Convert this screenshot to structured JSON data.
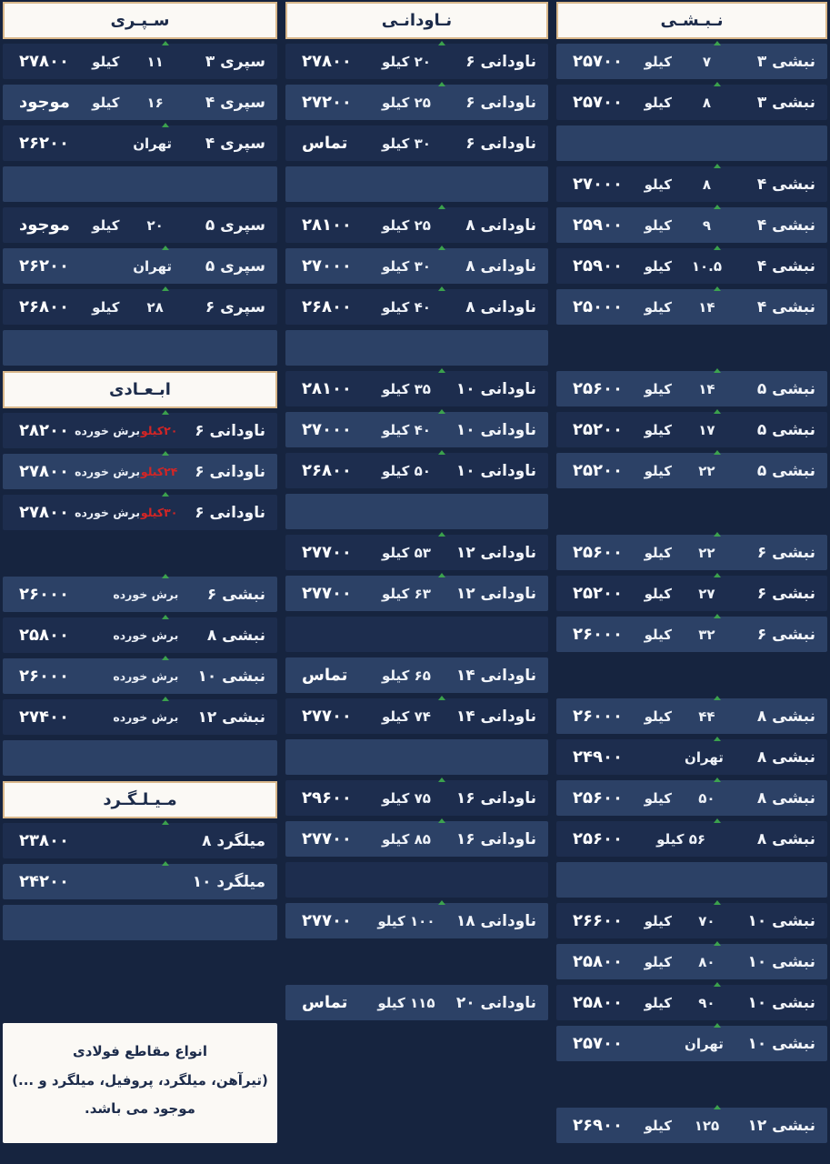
{
  "colors": {
    "background": "#16243f",
    "row_dark": "#1d2d4e",
    "row_light": "#2c4166",
    "header_bg": "#fbf9f5",
    "header_border": "#d9b88b",
    "row_text": "#f2f5fa",
    "price_text": "#ffffff",
    "red_text": "#d42525",
    "header_text": "#1c2b4a",
    "tick_green": "#3fae4e"
  },
  "info_box": {
    "lines": [
      "انواع مقاطع فولادی",
      "(تیرآهن، میلگرد، پروفیل، میلگرد و ...)",
      "موجود می باشد."
    ]
  },
  "columns": [
    {
      "id": "sepri-abadi-milgerd",
      "slots": [
        {
          "type": "header",
          "label": "سـپـری"
        },
        {
          "type": "row",
          "sh": "d",
          "name": "سپری ۳",
          "w": "۱۱",
          "u": "کیلو",
          "p": "۲۷۸۰۰"
        },
        {
          "type": "row",
          "sh": "l",
          "name": "سپری ۴",
          "w": "۱۶",
          "u": "کیلو",
          "p": "موجود"
        },
        {
          "type": "row",
          "sh": "d",
          "name": "سپری ۴",
          "w": "",
          "u": "تهران",
          "p": "۲۶۲۰۰"
        },
        {
          "type": "empty",
          "sh": "l"
        },
        {
          "type": "row",
          "sh": "d",
          "name": "سپری ۵",
          "w": "۲۰",
          "u": "کیلو",
          "p": "موجود"
        },
        {
          "type": "row",
          "sh": "l",
          "name": "سپری ۵",
          "w": "",
          "u": "تهران",
          "p": "۲۶۲۰۰"
        },
        {
          "type": "row",
          "sh": "d",
          "name": "سپری ۶",
          "w": "۲۸",
          "u": "کیلو",
          "p": "۲۶۸۰۰"
        },
        {
          "type": "empty",
          "sh": "l"
        },
        {
          "type": "header",
          "label": "ابـعـادی"
        },
        {
          "type": "row",
          "sh": "d",
          "name": "ناودانی ۶",
          "rw": "۲۰کیلو",
          "note": "برش خورده",
          "p": "۲۸۲۰۰"
        },
        {
          "type": "row",
          "sh": "l",
          "name": "ناودانی ۶",
          "rw": "۲۴کیلو",
          "note": "برش خورده",
          "p": "۲۷۸۰۰"
        },
        {
          "type": "row",
          "sh": "d",
          "name": "ناودانی ۶",
          "rw": "۳۰کیلو",
          "note": "برش خورده",
          "p": "۲۷۸۰۰"
        },
        {
          "type": "empty",
          "sh": "bg"
        },
        {
          "type": "row",
          "sh": "l",
          "name": "نبشی ۶",
          "note": "برش خورده",
          "p": "۲۶۰۰۰"
        },
        {
          "type": "row",
          "sh": "d",
          "name": "نبشی ۸",
          "note": "برش خورده",
          "p": "۲۵۸۰۰"
        },
        {
          "type": "row",
          "sh": "l",
          "name": "نبشی ۱۰",
          "note": "برش خورده",
          "p": "۲۶۰۰۰"
        },
        {
          "type": "row",
          "sh": "d",
          "name": "نبشی ۱۲",
          "note": "برش خورده",
          "p": "۲۷۴۰۰"
        },
        {
          "type": "empty",
          "sh": "l"
        },
        {
          "type": "header",
          "label": "مـیـلـگـرد"
        },
        {
          "type": "row",
          "sh": "d",
          "name": "میلگرد ۸",
          "p": "۲۳۸۰۰"
        },
        {
          "type": "row",
          "sh": "l",
          "name": "میلگرد ۱۰",
          "p": "۲۴۲۰۰"
        },
        {
          "type": "empty",
          "sh": "l"
        },
        {
          "type": "empty",
          "sh": "bg"
        },
        {
          "type": "info"
        }
      ]
    },
    {
      "id": "navodani",
      "slots": [
        {
          "type": "header",
          "label": "نـاودانـی"
        },
        {
          "type": "row",
          "sh": "d",
          "name": "ناودانی ۶",
          "w": "۲۰ کیلو",
          "u": "",
          "p": "۲۷۸۰۰"
        },
        {
          "type": "row",
          "sh": "l",
          "name": "ناودانی ۶",
          "w": "۲۵ کیلو",
          "u": "",
          "p": "۲۷۲۰۰"
        },
        {
          "type": "row",
          "sh": "d",
          "name": "ناودانی ۶",
          "w": "۳۰ کیلو",
          "u": "",
          "p": "تماس"
        },
        {
          "type": "empty",
          "sh": "l"
        },
        {
          "type": "row",
          "sh": "d",
          "name": "ناودانی ۸",
          "w": "۲۵ کیلو",
          "u": "",
          "p": "۲۸۱۰۰"
        },
        {
          "type": "row",
          "sh": "l",
          "name": "ناودانی ۸",
          "w": "۳۰ کیلو",
          "u": "",
          "p": "۲۷۰۰۰"
        },
        {
          "type": "row",
          "sh": "d",
          "name": "ناودانی ۸",
          "w": "۴۰ کیلو",
          "u": "",
          "p": "۲۶۸۰۰"
        },
        {
          "type": "empty",
          "sh": "l"
        },
        {
          "type": "row",
          "sh": "d",
          "name": "ناودانی ۱۰",
          "w": "۳۵ کیلو",
          "u": "",
          "p": "۲۸۱۰۰"
        },
        {
          "type": "row",
          "sh": "l",
          "name": "ناودانی ۱۰",
          "w": "۴۰ کیلو",
          "u": "",
          "p": "۲۷۰۰۰"
        },
        {
          "type": "row",
          "sh": "d",
          "name": "ناودانی ۱۰",
          "w": "۵۰ کیلو",
          "u": "",
          "p": "۲۶۸۰۰"
        },
        {
          "type": "empty",
          "sh": "l"
        },
        {
          "type": "row",
          "sh": "d",
          "name": "ناودانی ۱۲",
          "w": "۵۳ کیلو",
          "u": "",
          "p": "۲۷۷۰۰"
        },
        {
          "type": "row",
          "sh": "l",
          "name": "ناودانی ۱۲",
          "w": "۶۳ کیلو",
          "u": "",
          "p": "۲۷۷۰۰"
        },
        {
          "type": "empty",
          "sh": "d"
        },
        {
          "type": "row",
          "sh": "l",
          "name": "ناودانی ۱۴",
          "w": "۶۵ کیلو",
          "u": "",
          "p": "تماس"
        },
        {
          "type": "row",
          "sh": "d",
          "name": "ناودانی ۱۴",
          "w": "۷۴ کیلو",
          "u": "",
          "p": "۲۷۷۰۰"
        },
        {
          "type": "empty",
          "sh": "l"
        },
        {
          "type": "row",
          "sh": "d",
          "name": "ناودانی ۱۶",
          "w": "۷۵ کیلو",
          "u": "",
          "p": "۲۹۶۰۰"
        },
        {
          "type": "row",
          "sh": "l",
          "name": "ناودانی ۱۶",
          "w": "۸۵ کیلو",
          "u": "",
          "p": "۲۷۷۰۰"
        },
        {
          "type": "empty",
          "sh": "d"
        },
        {
          "type": "row",
          "sh": "l",
          "name": "ناودانی ۱۸",
          "w": "۱۰۰ کیلو",
          "u": "",
          "p": "۲۷۷۰۰"
        },
        {
          "type": "empty",
          "sh": "bg"
        },
        {
          "type": "row",
          "sh": "l",
          "name": "ناودانی ۲۰",
          "w": "۱۱۵ کیلو",
          "u": "",
          "p": "تماس"
        }
      ]
    },
    {
      "id": "nabshi",
      "slots": [
        {
          "type": "header",
          "label": "نـبـشـی"
        },
        {
          "type": "row",
          "sh": "l",
          "name": "نبشی ۳",
          "w": "۷",
          "u": "کیلو",
          "p": "۲۵۷۰۰"
        },
        {
          "type": "row",
          "sh": "d",
          "name": "نبشی ۳",
          "w": "۸",
          "u": "کیلو",
          "p": "۲۵۷۰۰"
        },
        {
          "type": "empty",
          "sh": "l"
        },
        {
          "type": "row",
          "sh": "d",
          "name": "نبشی ۴",
          "w": "۸",
          "u": "کیلو",
          "p": "۲۷۰۰۰"
        },
        {
          "type": "row",
          "sh": "l",
          "name": "نبشی ۴",
          "w": "۹",
          "u": "کیلو",
          "p": "۲۵۹۰۰"
        },
        {
          "type": "row",
          "sh": "d",
          "name": "نبشی ۴",
          "w": "۱۰.۵",
          "u": "کیلو",
          "p": "۲۵۹۰۰"
        },
        {
          "type": "row",
          "sh": "l",
          "name": "نبشی ۴",
          "w": "۱۴",
          "u": "کیلو",
          "p": "۲۵۰۰۰"
        },
        {
          "type": "empty",
          "sh": "bg"
        },
        {
          "type": "row",
          "sh": "l",
          "name": "نبشی ۵",
          "w": "۱۴",
          "u": "کیلو",
          "p": "۲۵۶۰۰"
        },
        {
          "type": "row",
          "sh": "d",
          "name": "نبشی ۵",
          "w": "۱۷",
          "u": "کیلو",
          "p": "۲۵۲۰۰"
        },
        {
          "type": "row",
          "sh": "l",
          "name": "نبشی ۵",
          "w": "۲۲",
          "u": "کیلو",
          "p": "۲۵۲۰۰"
        },
        {
          "type": "empty",
          "sh": "bg"
        },
        {
          "type": "row",
          "sh": "l",
          "name": "نبشی ۶",
          "w": "۲۲",
          "u": "کیلو",
          "p": "۲۵۶۰۰"
        },
        {
          "type": "row",
          "sh": "d",
          "name": "نبشی ۶",
          "w": "۲۷",
          "u": "کیلو",
          "p": "۲۵۲۰۰"
        },
        {
          "type": "row",
          "sh": "l",
          "name": "نبشی ۶",
          "w": "۳۲",
          "u": "کیلو",
          "p": "۲۶۰۰۰"
        },
        {
          "type": "empty",
          "sh": "bg"
        },
        {
          "type": "row",
          "sh": "l",
          "name": "نبشی ۸",
          "w": "۴۴",
          "u": "کیلو",
          "p": "۲۶۰۰۰"
        },
        {
          "type": "row",
          "sh": "d",
          "name": "نبشی ۸",
          "w": "",
          "u": "تهران",
          "p": "۲۴۹۰۰"
        },
        {
          "type": "row",
          "sh": "l",
          "name": "نبشی ۸",
          "w": "۵۰",
          "u": "کیلو",
          "p": "۲۵۶۰۰"
        },
        {
          "type": "row",
          "sh": "d",
          "name": "نبشی ۸",
          "w": "۵۶ کیلو",
          "u": "",
          "p": "۲۵۶۰۰"
        },
        {
          "type": "empty",
          "sh": "l"
        },
        {
          "type": "row",
          "sh": "d",
          "name": "نبشی ۱۰",
          "w": "۷۰",
          "u": "کیلو",
          "p": "۲۶۶۰۰"
        },
        {
          "type": "row",
          "sh": "l",
          "name": "نبشی ۱۰",
          "w": "۸۰",
          "u": "کیلو",
          "p": "۲۵۸۰۰"
        },
        {
          "type": "row",
          "sh": "d",
          "name": "نبشی ۱۰",
          "w": "۹۰",
          "u": "کیلو",
          "p": "۲۵۸۰۰"
        },
        {
          "type": "row",
          "sh": "l",
          "name": "نبشی ۱۰",
          "w": "",
          "u": "تهران",
          "p": "۲۵۷۰۰"
        },
        {
          "type": "empty",
          "sh": "bg"
        },
        {
          "type": "row",
          "sh": "l",
          "name": "نبشی ۱۲",
          "w": "۱۲۵",
          "u": "کیلو",
          "p": "۲۶۹۰۰"
        }
      ]
    }
  ]
}
